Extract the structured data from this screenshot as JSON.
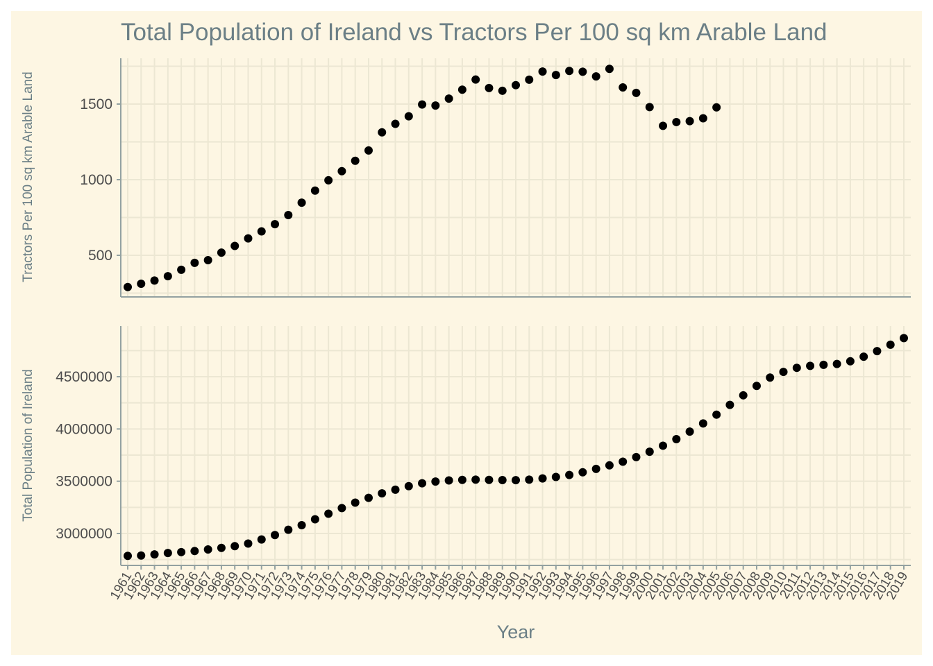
{
  "chart_data": {
    "type": "scatter",
    "title": "Total Population of Ireland vs Tractors Per 100 sq km Arable Land",
    "xlabel": "Year",
    "x": [
      1961,
      1962,
      1963,
      1964,
      1965,
      1966,
      1967,
      1968,
      1969,
      1970,
      1971,
      1972,
      1973,
      1974,
      1975,
      1976,
      1977,
      1978,
      1979,
      1980,
      1981,
      1982,
      1983,
      1984,
      1985,
      1986,
      1987,
      1988,
      1989,
      1990,
      1991,
      1992,
      1993,
      1994,
      1995,
      1996,
      1997,
      1998,
      1999,
      2000,
      2001,
      2002,
      2003,
      2004,
      2005,
      2006,
      2007,
      2008,
      2009,
      2010,
      2011,
      2012,
      2013,
      2014,
      2015,
      2016,
      2017,
      2018,
      2019
    ],
    "x_tick_labels": [
      "1961",
      "1962",
      "1963",
      "1964",
      "1965",
      "1966",
      "1967",
      "1968",
      "1969",
      "1970",
      "1971",
      "1972",
      "1973",
      "1974",
      "1975",
      "1976",
      "1977",
      "1978",
      "1979",
      "1980",
      "1981",
      "1982",
      "1983",
      "1984",
      "1985",
      "1986",
      "1987",
      "1988",
      "1989",
      "1990",
      "1991",
      "1992",
      "1993",
      "1994",
      "1995",
      "1996",
      "1997",
      "1998",
      "1999",
      "2000",
      "2001",
      "2002",
      "2003",
      "2004",
      "2005",
      "2006",
      "2007",
      "2008",
      "2009",
      "2010",
      "2011",
      "2012",
      "2013",
      "2014",
      "2015",
      "2016",
      "2017",
      "2018",
      "2019"
    ],
    "panels": [
      {
        "ylabel": "Tractors Per 100 sq km Arable Land",
        "ylim": [
          230,
          1800
        ],
        "yticks": [
          500,
          1000,
          1500
        ],
        "ytick_labels": [
          "500",
          "1000",
          "1500"
        ],
        "grid": true,
        "values": [
          290,
          312,
          333,
          362,
          404,
          450,
          468,
          518,
          562,
          612,
          658,
          706,
          766,
          848,
          928,
          996,
          1056,
          1125,
          1193,
          1313,
          1369,
          1419,
          1497,
          1490,
          1536,
          1595,
          1662,
          1606,
          1588,
          1625,
          1661,
          1715,
          1692,
          1719,
          1714,
          1683,
          1733,
          1610,
          1574,
          1480,
          1356,
          1381,
          1387,
          1406,
          1478
        ]
      },
      {
        "ylabel": "Total Population of Ireland",
        "ylim": [
          2690000,
          4950000
        ],
        "yticks": [
          3000000,
          3500000,
          4000000,
          4500000
        ],
        "ytick_labels": [
          "3000000",
          "3500000",
          "4000000",
          "4500000"
        ],
        "grid": true,
        "values": [
          2786000,
          2789000,
          2800000,
          2813000,
          2822000,
          2832000,
          2847000,
          2862000,
          2879000,
          2904000,
          2943000,
          2985000,
          3036000,
          3080000,
          3136000,
          3189000,
          3243000,
          3295000,
          3341000,
          3384000,
          3419000,
          3453000,
          3480000,
          3497000,
          3508000,
          3513000,
          3515000,
          3513000,
          3511000,
          3510000,
          3515000,
          3527000,
          3541000,
          3560000,
          3586000,
          3618000,
          3652000,
          3687000,
          3731000,
          3782000,
          3840000,
          3903000,
          3975000,
          4053000,
          4137000,
          4230000,
          4322000,
          4412000,
          4492000,
          4546000,
          4585000,
          4604000,
          4614000,
          4622000,
          4648000,
          4692000,
          4745000,
          4806000,
          4869000
        ]
      }
    ],
    "colors": {
      "background": "#fdf6e3",
      "grid": "#ece7d3",
      "axis": "#93a1a1",
      "point": "#000000",
      "text": "#6b7f86",
      "tick_text": "#4d4d4d"
    }
  }
}
